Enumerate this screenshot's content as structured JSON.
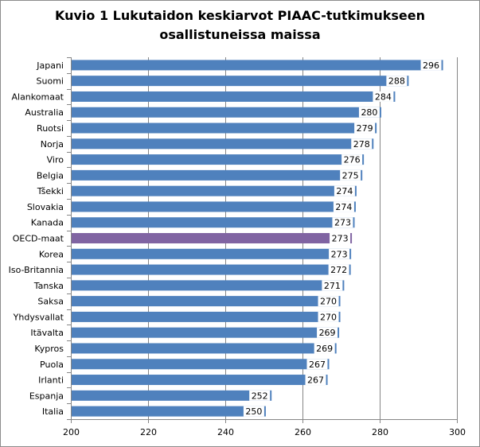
{
  "chart_data": {
    "type": "bar",
    "orientation": "horizontal",
    "title_line1": "Kuvio 1 Lukutaidon keskiarvot PIAAC-tutkimukseen",
    "title_line2": "osallistuneissa maissa",
    "xlabel": "",
    "ylabel": "",
    "xlim": [
      200,
      300
    ],
    "xticks": [
      "200",
      "220",
      "240",
      "260",
      "280",
      "300"
    ],
    "grid": "vertical",
    "legend": "none",
    "categories": [
      "Japani",
      "Suomi",
      "Alankomaat",
      "Australia",
      "Ruotsi",
      "Norja",
      "Viro",
      "Belgia",
      "Tšekki",
      "Slovakia",
      "Kanada",
      "OECD-maat",
      "Korea",
      "Iso-Britannia",
      "Tanska",
      "Saksa",
      "Yhdysvallat",
      "Itävalta",
      "Kypros",
      "Puola",
      "Irlanti",
      "Espanja",
      "Italia"
    ],
    "values": [
      296.4,
      287.5,
      284.0,
      280.4,
      279.2,
      278.4,
      275.9,
      275.5,
      274.0,
      273.8,
      273.5,
      272.8,
      272.6,
      272.5,
      270.8,
      269.8,
      269.8,
      269.5,
      268.8,
      266.9,
      266.5,
      252.0,
      250.5
    ],
    "value_labels": [
      "296",
      "288",
      "284",
      "280",
      "279",
      "278",
      "276",
      "275",
      "274",
      "274",
      "273",
      "273",
      "273",
      "272",
      "271",
      "270",
      "270",
      "269",
      "269",
      "267",
      "267",
      "252",
      "250"
    ],
    "highlight": "OECD-maat",
    "colors": {
      "bar": "#4f81bd",
      "highlight": "#8064a2",
      "grid": "#868686",
      "axis": "#868686",
      "label_bg": "#ffffff"
    }
  }
}
